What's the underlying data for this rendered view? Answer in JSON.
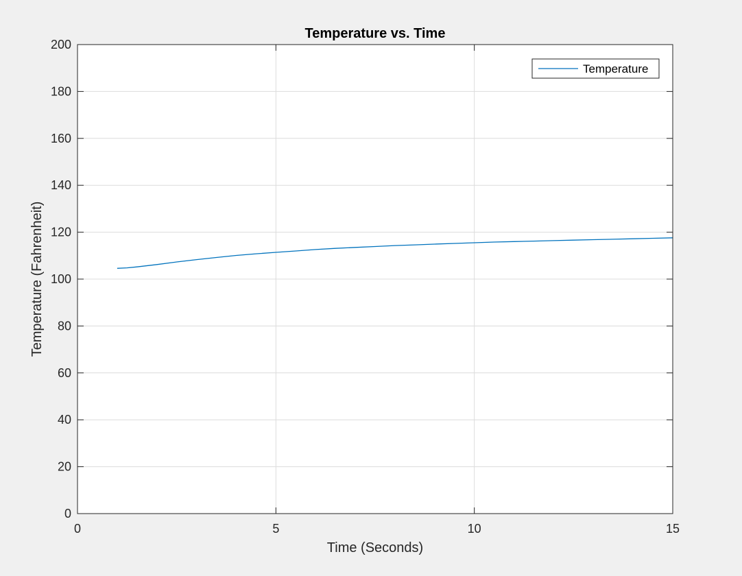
{
  "chart_data": {
    "type": "line",
    "title": "Temperature vs. Time",
    "xlabel": "Time (Seconds)",
    "ylabel": "Temperature (Fahrenheit)",
    "xlim": [
      0,
      15
    ],
    "ylim": [
      0,
      200
    ],
    "xticks": [
      0,
      5,
      10,
      15
    ],
    "yticks": [
      0,
      20,
      40,
      60,
      80,
      100,
      120,
      140,
      160,
      180,
      200
    ],
    "grid": true,
    "legend": {
      "position": "top-right",
      "entries": [
        "Temperature"
      ]
    },
    "series": [
      {
        "name": "Temperature",
        "color": "#0072BD",
        "x": [
          1.0,
          1.25,
          1.5,
          2.0,
          2.5,
          3.0,
          3.5,
          4.0,
          4.5,
          5.0,
          5.5,
          6.0,
          6.5,
          7.0,
          7.5,
          8.0,
          8.5,
          9.0,
          9.5,
          10.0,
          10.5,
          11.0,
          11.5,
          12.0,
          12.5,
          13.0,
          13.5,
          14.0,
          14.5,
          15.0
        ],
        "y": [
          104.6,
          104.8,
          105.2,
          106.2,
          107.3,
          108.3,
          109.2,
          110.1,
          110.8,
          111.4,
          112.0,
          112.6,
          113.1,
          113.5,
          113.9,
          114.3,
          114.6,
          114.9,
          115.2,
          115.5,
          115.8,
          116.0,
          116.2,
          116.4,
          116.6,
          116.8,
          117.0,
          117.2,
          117.4,
          117.6
        ]
      }
    ]
  }
}
